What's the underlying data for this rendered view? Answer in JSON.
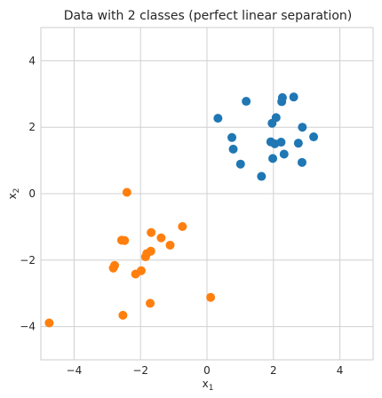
{
  "chart_data": {
    "type": "scatter",
    "title": "Data with 2 classes (perfect linear separation)",
    "xlabel": {
      "base": "x",
      "sub": "1"
    },
    "ylabel": {
      "base": "x",
      "sub": "2"
    },
    "xlim": [
      -5.0,
      5.0
    ],
    "ylim": [
      -5.0,
      5.0
    ],
    "xticks": [
      -4,
      -2,
      0,
      2,
      4
    ],
    "yticks": [
      -4,
      -2,
      0,
      2,
      4
    ],
    "xtick_labels": [
      "−4",
      "−2",
      "0",
      "2",
      "4"
    ],
    "ytick_labels": [
      "−4",
      "−2",
      "0",
      "2",
      "4"
    ],
    "grid": true,
    "series": [
      {
        "color": "#1f77b4",
        "points": [
          [
            0.33,
            2.27
          ],
          [
            1.18,
            2.78
          ],
          [
            2.27,
            2.89
          ],
          [
            2.25,
            2.77
          ],
          [
            2.61,
            2.91
          ],
          [
            1.96,
            2.12
          ],
          [
            2.08,
            2.29
          ],
          [
            2.87,
            2.0
          ],
          [
            0.75,
            1.69
          ],
          [
            0.79,
            1.34
          ],
          [
            1.92,
            1.56
          ],
          [
            2.04,
            1.5
          ],
          [
            2.23,
            1.55
          ],
          [
            2.75,
            1.52
          ],
          [
            3.21,
            1.71
          ],
          [
            2.32,
            1.19
          ],
          [
            1.98,
            1.06
          ],
          [
            2.86,
            0.94
          ],
          [
            1.01,
            0.89
          ],
          [
            1.64,
            0.52
          ]
        ]
      },
      {
        "color": "#ff7f0e",
        "points": [
          [
            -2.41,
            0.04
          ],
          [
            -0.74,
            -0.99
          ],
          [
            -1.68,
            -1.17
          ],
          [
            -1.38,
            -1.33
          ],
          [
            -2.57,
            -1.4
          ],
          [
            -2.48,
            -1.41
          ],
          [
            -1.11,
            -1.55
          ],
          [
            -1.69,
            -1.73
          ],
          [
            -1.81,
            -1.8
          ],
          [
            -1.85,
            -1.9
          ],
          [
            -2.78,
            -2.16
          ],
          [
            -2.82,
            -2.24
          ],
          [
            -1.98,
            -2.32
          ],
          [
            -2.15,
            -2.42
          ],
          [
            0.11,
            -3.12
          ],
          [
            -1.71,
            -3.3
          ],
          [
            -2.53,
            -3.66
          ],
          [
            -4.75,
            -3.89
          ]
        ]
      }
    ]
  }
}
